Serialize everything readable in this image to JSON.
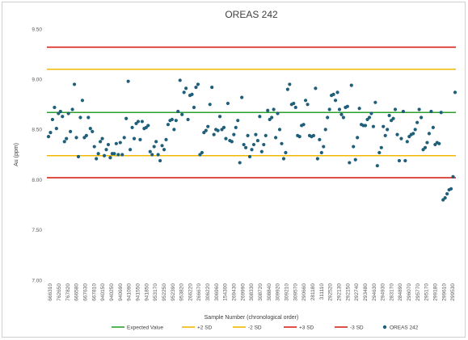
{
  "chart_data": {
    "type": "scatter",
    "title": "OREAS 242",
    "xlabel": "Sample Number (chronological order)",
    "ylabel": "Au (ppm)",
    "ylim": [
      7.0,
      9.5
    ],
    "yticks": [
      "7.00",
      "7.50",
      "8.00",
      "8.50",
      "9.00",
      "9.50"
    ],
    "grid": false,
    "legend_position": "bottom",
    "categories": [
      "666310",
      "762650",
      "767820",
      "666580",
      "667630",
      "667810",
      "940150",
      "940250",
      "940690",
      "941090",
      "941550",
      "941850",
      "953170",
      "952250",
      "952390",
      "953820",
      "266220",
      "266670",
      "306220",
      "306960",
      "154300",
      "269430",
      "269990",
      "308330",
      "308720",
      "308840",
      "309920",
      "309210",
      "309570",
      "290660",
      "281180",
      "311110",
      "292520",
      "292130",
      "292150",
      "292740",
      "293480",
      "294630",
      "294930",
      "283170",
      "284890",
      "296070",
      "295770",
      "295170",
      "299180",
      "299610",
      "299530"
    ],
    "series": [
      {
        "name": "OREAS 242",
        "values": [
          8.43,
          8.47,
          8.6,
          8.72,
          8.51,
          8.66,
          8.68,
          8.63,
          8.38,
          8.41,
          8.66,
          8.48,
          8.7,
          8.95,
          8.42,
          8.23,
          8.62,
          8.79,
          8.42,
          8.44,
          8.62,
          8.51,
          8.48,
          8.33,
          8.21,
          8.26,
          8.38,
          8.41,
          8.24,
          8.3,
          8.35,
          8.22,
          8.26,
          8.26,
          8.36,
          8.25,
          8.37,
          8.25,
          8.42,
          8.61,
          8.98,
          8.3,
          8.52,
          8.41,
          8.56,
          8.58,
          8.4,
          8.58,
          8.51,
          8.52,
          8.54,
          8.28,
          8.25,
          8.33,
          8.38,
          8.25,
          8.19,
          8.34,
          8.3,
          8.4,
          8.55,
          8.59,
          8.6,
          8.5,
          8.59,
          8.68,
          8.99,
          8.65,
          8.87,
          8.91,
          8.6,
          8.84,
          8.85,
          8.72,
          8.92,
          8.95,
          8.25,
          8.27,
          8.47,
          8.49,
          8.53,
          8.75,
          8.92,
          8.45,
          8.5,
          8.49,
          8.63,
          8.5,
          8.52,
          8.41,
          8.76,
          8.39,
          8.38,
          8.45,
          8.52,
          8.59,
          8.17,
          8.82,
          8.35,
          8.32,
          8.44,
          8.23,
          8.3,
          8.35,
          8.45,
          8.39,
          8.63,
          8.28,
          8.35,
          8.44,
          8.69,
          8.6,
          8.62,
          8.7,
          8.42,
          8.66,
          8.5,
          8.36,
          8.21,
          8.27,
          8.9,
          8.95,
          8.75,
          8.76,
          8.72,
          8.44,
          8.43,
          8.54,
          8.55,
          8.79,
          8.75,
          8.44,
          8.43,
          8.44,
          8.91,
          8.21,
          8.4,
          8.27,
          8.33,
          8.5,
          8.62,
          8.7,
          8.84,
          8.85,
          8.79,
          8.87,
          8.7,
          8.65,
          8.62,
          8.72,
          8.73,
          8.17,
          8.94,
          8.33,
          8.2,
          8.42,
          8.71,
          8.55,
          8.54,
          8.54,
          8.6,
          8.62,
          8.66,
          8.53,
          8.77,
          8.14,
          8.27,
          8.32,
          8.53,
          8.44,
          8.5,
          8.64,
          8.59,
          8.61,
          8.7,
          8.45,
          8.19,
          8.41,
          8.68,
          8.19,
          8.38,
          8.43,
          8.45,
          8.46,
          8.5,
          8.57,
          8.7,
          8.62,
          8.3,
          8.32,
          8.37,
          8.46,
          8.68,
          8.52,
          8.35,
          8.37,
          8.36,
          8.67,
          7.8,
          7.82,
          7.86,
          7.9,
          7.91,
          8.03,
          8.87
        ]
      }
    ],
    "reference_lines": [
      {
        "name": "Expected Value",
        "value": 8.67,
        "color": "#2ca02c"
      },
      {
        "name": "+2 SD",
        "value": 9.1,
        "color": "#f2b800"
      },
      {
        "name": "-2 SD",
        "value": 8.24,
        "color": "#f2b800"
      },
      {
        "name": "+3 SD",
        "value": 9.32,
        "color": "#d62418"
      },
      {
        "name": "-3 SD",
        "value": 8.02,
        "color": "#d62418"
      }
    ],
    "marker_color": "#1f5f7a",
    "legend": [
      {
        "label": "Expected Value",
        "kind": "line",
        "color": "#2ca02c"
      },
      {
        "label": "+2 SD",
        "kind": "line",
        "color": "#f2b800"
      },
      {
        "label": "-2 SD",
        "kind": "line",
        "color": "#f2b800"
      },
      {
        "label": "+3 SD",
        "kind": "line",
        "color": "#d62418"
      },
      {
        "label": "-3 SD",
        "kind": "line",
        "color": "#d62418"
      },
      {
        "label": "OREAS 242",
        "kind": "marker",
        "color": "#1f5f7a"
      }
    ]
  }
}
